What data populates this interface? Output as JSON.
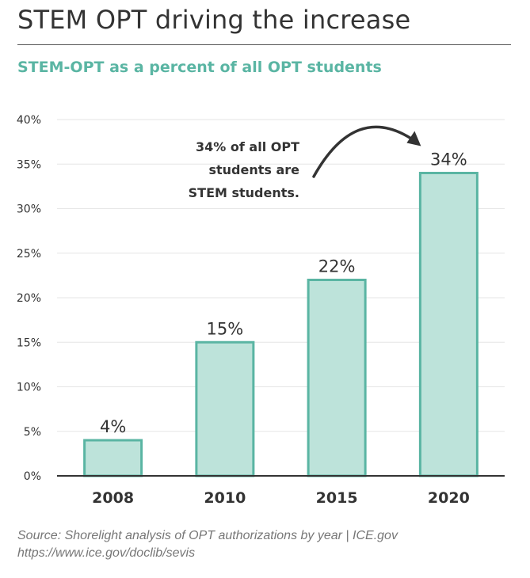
{
  "header": {
    "title": "STEM OPT driving the increase",
    "subtitle": "STEM-OPT as a percent of all OPT students"
  },
  "chart_data": {
    "type": "bar",
    "title": "STEM-OPT as a percent of all OPT students",
    "xlabel": "",
    "ylabel": "",
    "categories": [
      "2008",
      "2010",
      "2015",
      "2020"
    ],
    "values": [
      4,
      15,
      22,
      34
    ],
    "value_labels": [
      "4%",
      "15%",
      "22%",
      "34%"
    ],
    "ylim": [
      0,
      40
    ],
    "yticks": [
      0,
      5,
      10,
      15,
      20,
      25,
      30,
      35,
      40
    ],
    "ytick_labels": [
      "0%",
      "5%",
      "10%",
      "15%",
      "20%",
      "25%",
      "30%",
      "35%",
      "40%"
    ],
    "grid": true,
    "legend": "none",
    "annotation": {
      "lines": [
        "34% of all OPT",
        "students are",
        "STEM students."
      ],
      "target_category": "2020"
    },
    "colors": {
      "bar_fill": "#bde3da",
      "bar_stroke": "#5ab5a3",
      "grid": "#e6e6e6",
      "axis": "#333333",
      "text": "#333333"
    }
  },
  "footer": {
    "source_line1": "Source: Shorelight analysis of OPT authorizations by year | ICE.gov",
    "source_line2": "https://www.ice.gov/doclib/sevis"
  }
}
